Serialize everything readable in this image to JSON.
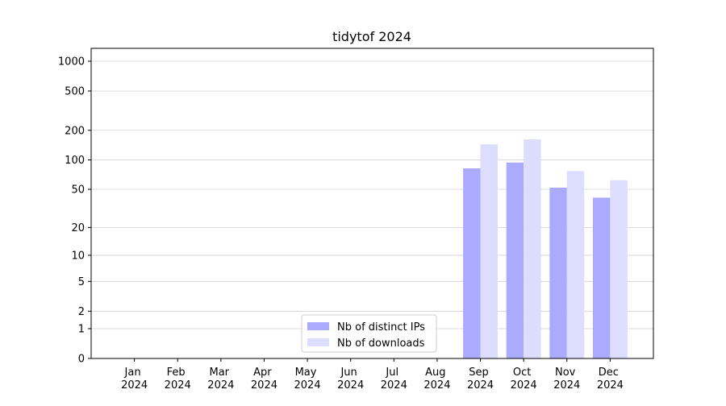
{
  "chart_data": {
    "type": "bar",
    "title": "tidytof 2024",
    "categories": [
      "Jan 2024",
      "Feb 2024",
      "Mar 2024",
      "Apr 2024",
      "May 2024",
      "Jun 2024",
      "Jul 2024",
      "Aug 2024",
      "Sep 2024",
      "Oct 2024",
      "Nov 2024",
      "Dec 2024"
    ],
    "series": [
      {
        "name": "Nb of distinct IPs",
        "color": "#aaaaff",
        "values": [
          0,
          0,
          0,
          0,
          0,
          0,
          0,
          0,
          82,
          94,
          52,
          41
        ]
      },
      {
        "name": "Nb of downloads",
        "color": "#ddddff",
        "values": [
          0,
          0,
          0,
          0,
          0,
          0,
          0,
          0,
          144,
          162,
          77,
          62
        ]
      }
    ],
    "yscale": "log1p",
    "ylim": [
      0,
      1350
    ],
    "yticks": [
      0,
      1,
      2,
      5,
      10,
      20,
      50,
      100,
      200,
      500,
      1000
    ],
    "grid": true,
    "legend": "lower center"
  }
}
